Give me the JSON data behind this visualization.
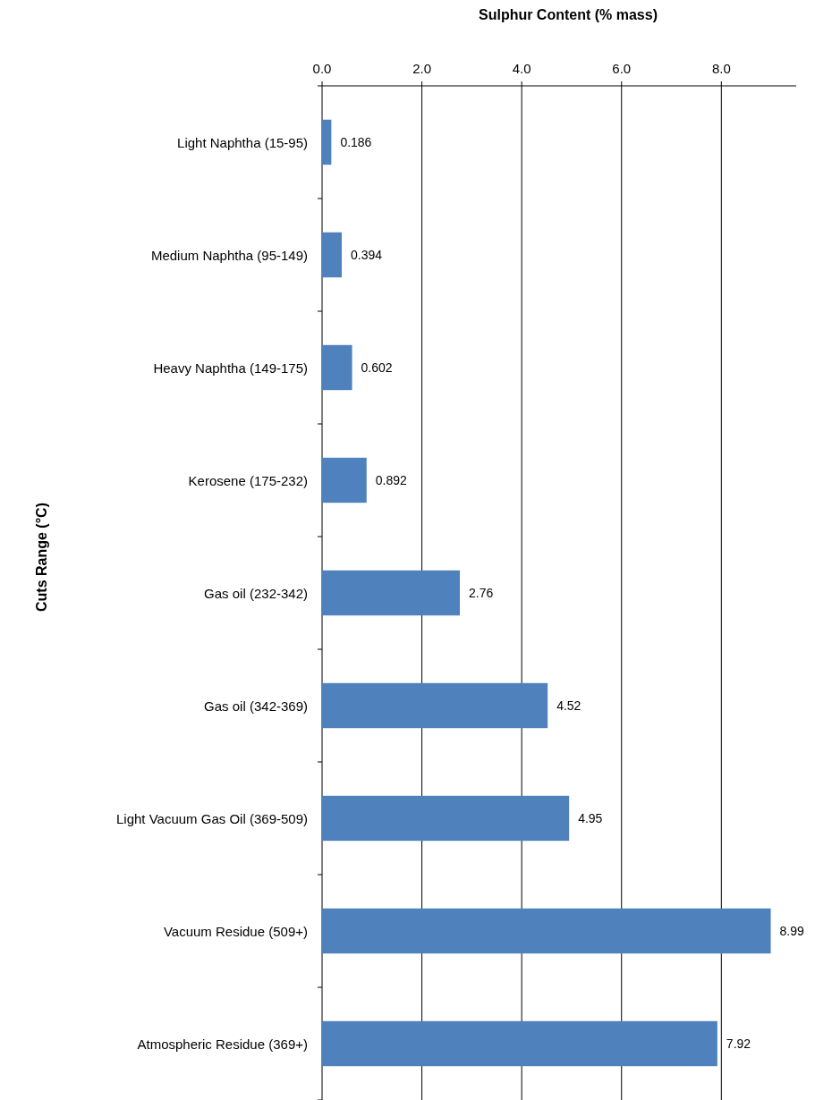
{
  "chart_data": {
    "type": "bar",
    "orientation": "horizontal",
    "xlabel": "Sulphur Content (% mass)",
    "ylabel": "Cuts Range (°C)",
    "categories": [
      "Light Naphtha (15-95)",
      "Medium Naphtha (95-149)",
      "Heavy Naphtha (149-175)",
      "Kerosene (175-232)",
      "Gas oil (232-342)",
      "Gas oil (342-369)",
      "Light Vacuum Gas Oil (369-509)",
      "Vacuum Residue (509+)",
      "Atmospheric Residue (369+)"
    ],
    "values": [
      0.186,
      0.394,
      0.602,
      0.892,
      2.76,
      4.52,
      4.95,
      8.99,
      7.92
    ],
    "color": "#4f81bd",
    "data_labels": true,
    "grid": "x",
    "xlim": [
      0,
      9.5
    ],
    "xticks": [
      {
        "value": 0,
        "label": "0.0"
      },
      {
        "value": 2,
        "label": "2.0"
      },
      {
        "value": 4,
        "label": "4.0"
      },
      {
        "value": 6,
        "label": "6.0"
      },
      {
        "value": 8,
        "label": "8.0"
      }
    ]
  }
}
